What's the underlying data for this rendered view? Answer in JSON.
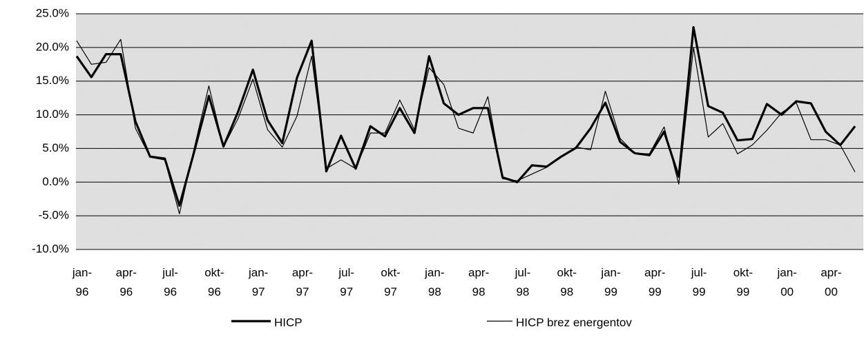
{
  "chart_data": {
    "type": "line",
    "categories": [
      "jan-96",
      null,
      null,
      "apr-96",
      null,
      null,
      "jul-96",
      null,
      null,
      "okt-96",
      null,
      null,
      "jan-97",
      null,
      null,
      "apr-97",
      null,
      null,
      "jul-97",
      null,
      null,
      "okt-97",
      null,
      null,
      "jan-98",
      null,
      null,
      "apr-98",
      null,
      null,
      "jul-98",
      null,
      null,
      "okt-98",
      null,
      null,
      "jan-99",
      null,
      null,
      "apr-99",
      null,
      null,
      "jul-99",
      null,
      null,
      "okt-99",
      null,
      null,
      "jan-00",
      null,
      null,
      "apr-00",
      null,
      null
    ],
    "series": [
      {
        "name": "HICP",
        "color": "#000000",
        "width": 3.2,
        "values": [
          18.7,
          15.6,
          19.0,
          19.0,
          9.0,
          3.8,
          3.5,
          -3.5,
          4.5,
          12.8,
          5.3,
          10.5,
          16.7,
          9.2,
          5.8,
          15.5,
          21.0,
          1.6,
          6.9,
          2.0,
          8.3,
          6.8,
          11.0,
          7.3,
          18.7,
          11.7,
          10.0,
          11.0,
          11.0,
          0.7,
          0.0,
          2.5,
          2.3,
          3.8,
          5.1,
          8.0,
          11.8,
          6.0,
          4.3,
          4.0,
          7.5,
          0.8,
          23.0,
          11.3,
          10.3,
          6.2,
          6.4,
          11.6,
          10.0,
          12.0,
          11.7,
          7.5,
          5.5,
          8.3
        ]
      },
      {
        "name": "HICP brez energentov",
        "color": "#000000",
        "width": 1.2,
        "values": [
          21.0,
          17.5,
          17.8,
          21.2,
          8.0,
          3.7,
          3.3,
          -4.7,
          5.0,
          14.3,
          5.2,
          9.5,
          15.3,
          7.8,
          5.2,
          9.8,
          18.7,
          2.0,
          3.3,
          2.0,
          7.3,
          7.3,
          12.2,
          7.8,
          17.0,
          14.5,
          8.0,
          7.3,
          12.7,
          0.5,
          0.2,
          1.2,
          2.2,
          3.7,
          5.2,
          4.8,
          13.5,
          6.5,
          4.3,
          4.2,
          8.2,
          -0.3,
          20.0,
          6.7,
          8.7,
          4.2,
          5.5,
          7.7,
          10.3,
          11.8,
          6.3,
          6.3,
          5.5,
          1.5
        ]
      }
    ],
    "ylim": [
      -10,
      25
    ],
    "yticks": [
      {
        "value": -10,
        "label": "-10.0%"
      },
      {
        "value": -5,
        "label": "-5.0%"
      },
      {
        "value": 0,
        "label": "0.0%"
      },
      {
        "value": 5,
        "label": "5.0%"
      },
      {
        "value": 10,
        "label": "10.0%"
      },
      {
        "value": 15,
        "label": "15.0%"
      },
      {
        "value": 20,
        "label": "20.0%"
      },
      {
        "value": 25,
        "label": "25.0%"
      }
    ],
    "grid": true,
    "legend": "bottom"
  }
}
